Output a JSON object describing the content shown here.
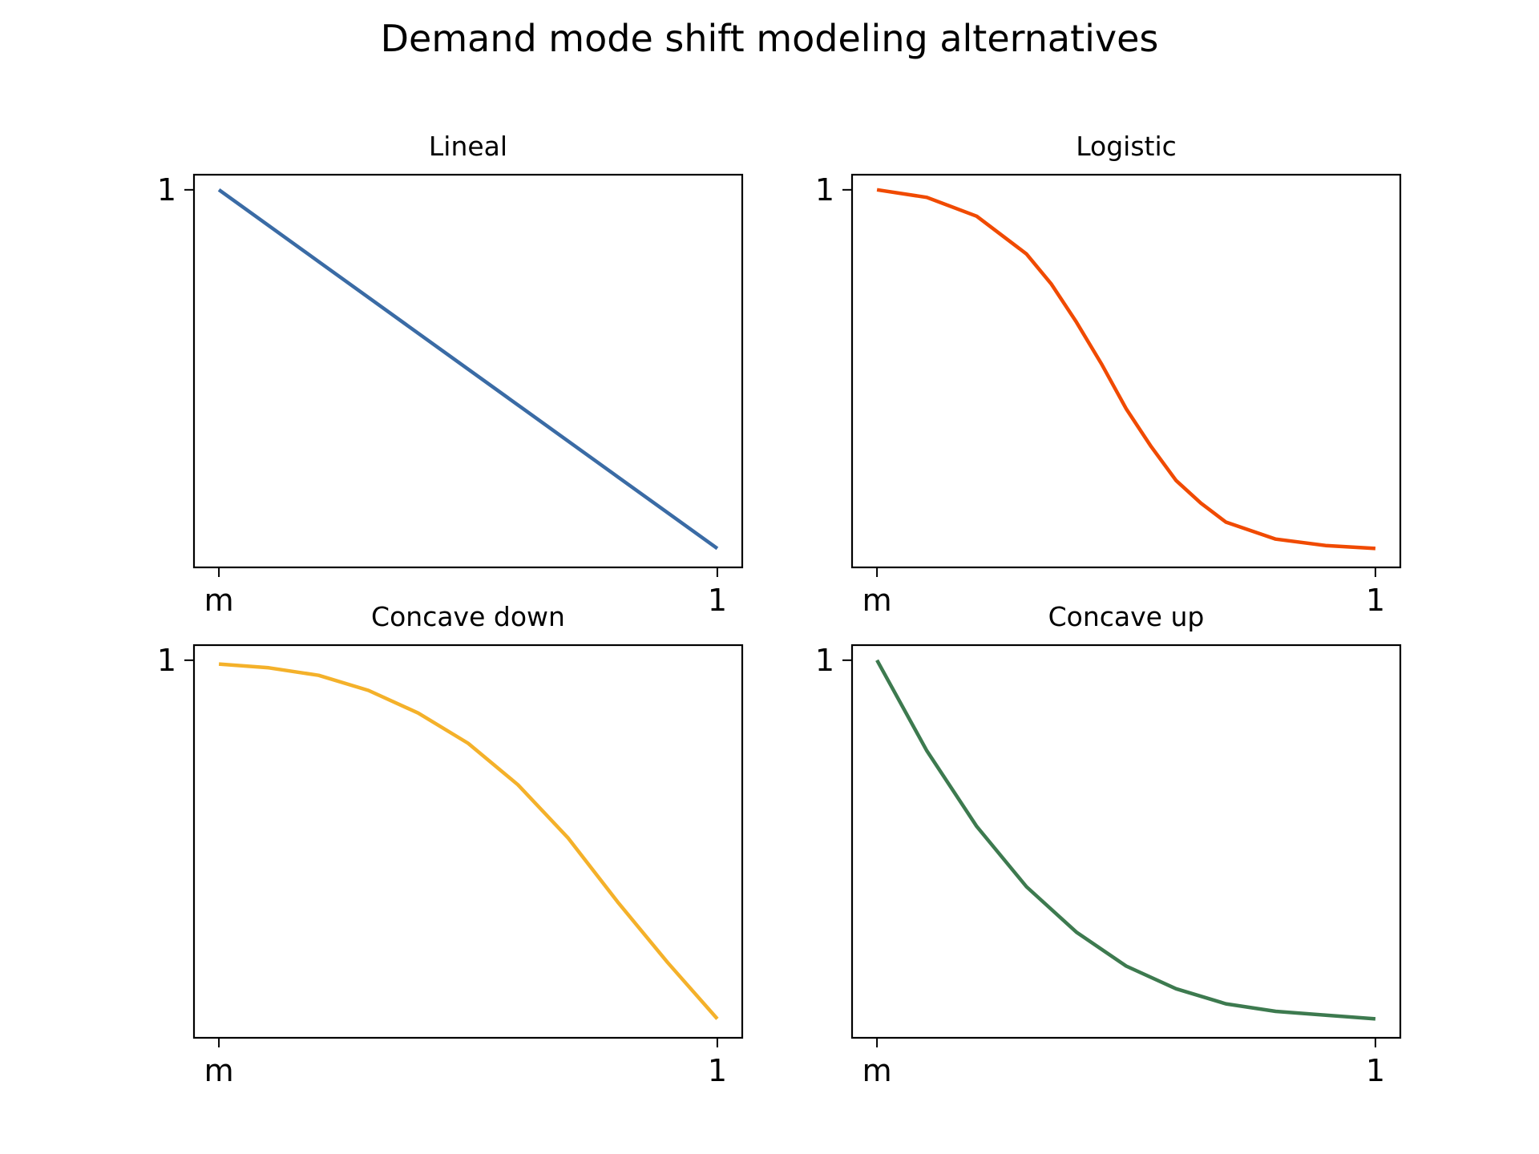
{
  "figure": {
    "title": "Demand mode shift modeling alternatives"
  },
  "chart_data": [
    {
      "type": "line",
      "title": "Lineal",
      "xlabel": "",
      "ylabel": "",
      "xlim": [
        -0.05,
        1.05
      ],
      "ylim": [
        0.0,
        1.04
      ],
      "x_tick_labels": [
        "m",
        "1"
      ],
      "y_tick_labels": [
        "1"
      ],
      "grid": false,
      "color": "#3a6ba5",
      "series": [
        {
          "x": [
            0,
            0.2,
            0.4,
            0.6,
            0.8,
            1.0
          ],
          "y": [
            1.0,
            0.81,
            0.62,
            0.43,
            0.24,
            0.05
          ]
        }
      ]
    },
    {
      "type": "line",
      "title": "Logistic",
      "xlabel": "",
      "ylabel": "",
      "xlim": [
        -0.05,
        1.05
      ],
      "ylim": [
        0.0,
        1.04
      ],
      "x_tick_labels": [
        "m",
        "1"
      ],
      "y_tick_labels": [
        "1"
      ],
      "grid": false,
      "color": "#f04a00",
      "series": [
        {
          "x": [
            0,
            0.1,
            0.2,
            0.3,
            0.35,
            0.4,
            0.45,
            0.5,
            0.55,
            0.6,
            0.65,
            0.7,
            0.8,
            0.9,
            1.0
          ],
          "y": [
            1.0,
            0.98,
            0.93,
            0.83,
            0.75,
            0.65,
            0.54,
            0.42,
            0.32,
            0.23,
            0.17,
            0.12,
            0.075,
            0.058,
            0.05
          ]
        }
      ]
    },
    {
      "type": "line",
      "title": "Concave down",
      "xlabel": "",
      "ylabel": "",
      "xlim": [
        -0.05,
        1.05
      ],
      "ylim": [
        0.0,
        1.04
      ],
      "x_tick_labels": [
        "m",
        "1"
      ],
      "y_tick_labels": [
        "1"
      ],
      "grid": false,
      "color": "#f4b12a",
      "series": [
        {
          "x": [
            0,
            0.1,
            0.2,
            0.3,
            0.4,
            0.5,
            0.6,
            0.7,
            0.8,
            0.9,
            1.0
          ],
          "y": [
            0.99,
            0.98,
            0.96,
            0.92,
            0.86,
            0.78,
            0.67,
            0.53,
            0.36,
            0.2,
            0.05
          ]
        }
      ]
    },
    {
      "type": "line",
      "title": "Concave up",
      "xlabel": "",
      "ylabel": "",
      "xlim": [
        -0.05,
        1.05
      ],
      "ylim": [
        0.0,
        1.04
      ],
      "x_tick_labels": [
        "m",
        "1"
      ],
      "y_tick_labels": [
        "1"
      ],
      "grid": false,
      "color": "#3d7a4f",
      "series": [
        {
          "x": [
            0,
            0.1,
            0.2,
            0.3,
            0.4,
            0.5,
            0.6,
            0.7,
            0.8,
            0.9,
            1.0
          ],
          "y": [
            1.0,
            0.76,
            0.56,
            0.4,
            0.28,
            0.19,
            0.13,
            0.09,
            0.07,
            0.06,
            0.05
          ]
        }
      ]
    }
  ]
}
